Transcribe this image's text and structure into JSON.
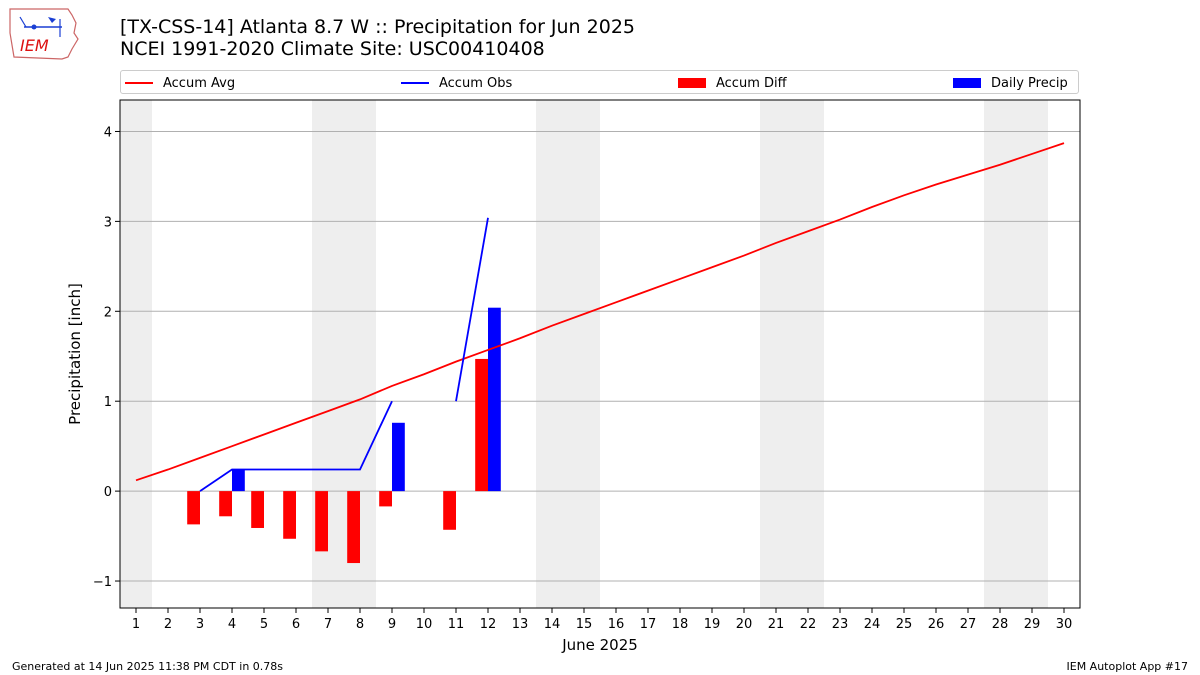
{
  "logo_text": "IEM",
  "chart_data": {
    "type": "bar",
    "title": "[TX-CSS-14] Atlanta 8.7 W :: Precipitation for Jun 2025",
    "subtitle": "NCEI 1991-2020 Climate Site: USC00410408",
    "xlabel": "June 2025",
    "ylabel": "Precipitation [inch]",
    "xlim": [
      0.5,
      30.5
    ],
    "ylim": [
      -1.3,
      4.35
    ],
    "yticks": [
      -1,
      0,
      1,
      2,
      3,
      4
    ],
    "ytick_labels": [
      "−1",
      "0",
      "1",
      "2",
      "3",
      "4"
    ],
    "xticks": [
      1,
      2,
      3,
      4,
      5,
      6,
      7,
      8,
      9,
      10,
      11,
      12,
      13,
      14,
      15,
      16,
      17,
      18,
      19,
      20,
      21,
      22,
      23,
      24,
      25,
      26,
      27,
      28,
      29,
      30
    ],
    "grid": "horizontal",
    "weekend_shading": [
      [
        0.5,
        1.5
      ],
      [
        6.5,
        8.5
      ],
      [
        13.5,
        15.5
      ],
      [
        20.5,
        22.5
      ],
      [
        27.5,
        29.5
      ]
    ],
    "legend_position": "top, above plot",
    "series": [
      {
        "name": "Accum Avg",
        "type": "line",
        "color": "#ff0000",
        "x": [
          1,
          2,
          3,
          4,
          5,
          6,
          7,
          8,
          9,
          10,
          11,
          12,
          13,
          14,
          15,
          16,
          17,
          18,
          19,
          20,
          21,
          22,
          23,
          24,
          25,
          26,
          27,
          28,
          29,
          30
        ],
        "values": [
          0.12,
          0.24,
          0.37,
          0.5,
          0.63,
          0.76,
          0.89,
          1.02,
          1.17,
          1.3,
          1.44,
          1.57,
          1.7,
          1.84,
          1.97,
          2.1,
          2.23,
          2.36,
          2.49,
          2.62,
          2.76,
          2.89,
          3.02,
          3.16,
          3.29,
          3.41,
          3.52,
          3.63,
          3.75,
          3.87
        ]
      },
      {
        "name": "Accum Obs",
        "type": "line",
        "color": "#0000ff",
        "segments": [
          {
            "x": [
              3,
              4,
              5,
              6,
              7,
              8,
              9
            ],
            "values": [
              0.0,
              0.24,
              0.24,
              0.24,
              0.24,
              0.24,
              1.0
            ]
          },
          {
            "x": [
              11,
              12
            ],
            "values": [
              1.0,
              3.04
            ]
          }
        ]
      },
      {
        "name": "Accum Diff",
        "type": "bar",
        "color": "#ff0000",
        "x": [
          3,
          4,
          5,
          6,
          7,
          8,
          9,
          11,
          12
        ],
        "values": [
          -0.37,
          -0.28,
          -0.41,
          -0.53,
          -0.67,
          -0.8,
          -0.17,
          -0.43,
          1.47
        ]
      },
      {
        "name": "Daily Precip",
        "type": "bar",
        "color": "#0000ff",
        "x": [
          4,
          9,
          12
        ],
        "values": [
          0.24,
          0.76,
          2.04
        ]
      }
    ]
  },
  "footer": {
    "left": "Generated at 14 Jun 2025 11:38 PM CDT in 0.78s",
    "right": "IEM Autoplot App #17"
  }
}
